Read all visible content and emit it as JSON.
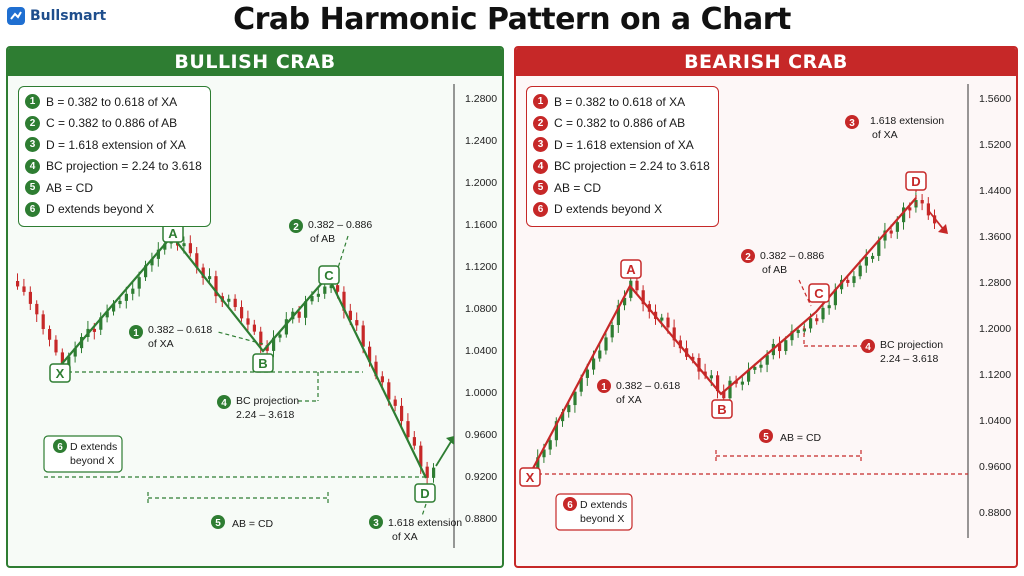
{
  "brand": {
    "name": "Bullsmart",
    "color": "#1f4e8c"
  },
  "title": "Crab Harmonic Pattern on a Chart",
  "colors": {
    "bull": "#2e7d32",
    "bear": "#c62828",
    "bull_bg": "#f7fbf7",
    "bear_bg": "#fdf7f7"
  },
  "bullish": {
    "header": "BULLISH CRAB",
    "rules": [
      {
        "n": "1",
        "text": "B = 0.382 to 0.618 of XA"
      },
      {
        "n": "2",
        "text": "C = 0.382 to 0.886 of AB"
      },
      {
        "n": "3",
        "text": "D = 1.618 extension of XA"
      },
      {
        "n": "4",
        "text": "BC projection = 2.24 to 3.618"
      },
      {
        "n": "5",
        "text": "AB = CD"
      },
      {
        "n": "6",
        "text": "D extends beyond X"
      }
    ],
    "axis_ticks": [
      "1.2800",
      "1.2400",
      "1.2000",
      "1.1600",
      "1.1200",
      "1.0800",
      "1.0400",
      "1.0000",
      "0.9600",
      "0.9200",
      "0.8800"
    ],
    "points": {
      "X": "X",
      "A": "A",
      "B": "B",
      "C": "C",
      "D": "D"
    },
    "annotations": {
      "b_ratio": {
        "n": "1",
        "line1": "0.382 – 0.618",
        "line2": "of XA"
      },
      "c_ratio": {
        "n": "2",
        "line1": "0.382 – 0.886",
        "line2": "of AB"
      },
      "d_ext": {
        "n": "3",
        "line1": "1.618 extension",
        "line2": "of XA"
      },
      "bc_proj": {
        "n": "4",
        "line1": "BC projection",
        "line2": "2.24 – 3.618"
      },
      "ab_cd": {
        "n": "5",
        "text": "AB = CD"
      },
      "d_beyond": {
        "n": "6",
        "line1": "D extends",
        "line2": "beyond X"
      }
    }
  },
  "bearish": {
    "header": "BEARISH CRAB",
    "rules": [
      {
        "n": "1",
        "text": "B = 0.382 to 0.618 of XA"
      },
      {
        "n": "2",
        "text": "C = 0.382 to 0.886 of AB"
      },
      {
        "n": "3",
        "text": "D = 1.618 extension of XA"
      },
      {
        "n": "4",
        "text": "BC projection = 2.24 to 3.618"
      },
      {
        "n": "5",
        "text": "AB = CD"
      },
      {
        "n": "6",
        "text": "D extends beyond X"
      }
    ],
    "axis_ticks": [
      "1.5600",
      "1.5200",
      "1.4400",
      "1.3600",
      "1.2800",
      "1.2000",
      "1.1200",
      "1.0400",
      "0.9600",
      "0.8800"
    ],
    "points": {
      "X": "X",
      "A": "A",
      "B": "B",
      "C": "C",
      "D": "D"
    },
    "annotations": {
      "b_ratio": {
        "n": "1",
        "line1": "0.382 – 0.618",
        "line2": "of XA"
      },
      "c_ratio": {
        "n": "2",
        "line1": "0.382 – 0.886",
        "line2": "of AB"
      },
      "d_ext": {
        "n": "3",
        "line1": "1.618 extension",
        "line2": "of XA"
      },
      "bc_proj": {
        "n": "4",
        "line1": "BC projection",
        "line2": "2.24 – 3.618"
      },
      "ab_cd": {
        "n": "5",
        "text": "AB = CD"
      },
      "d_beyond": {
        "n": "6",
        "line1": "D extends",
        "line2": "beyond X"
      }
    }
  }
}
